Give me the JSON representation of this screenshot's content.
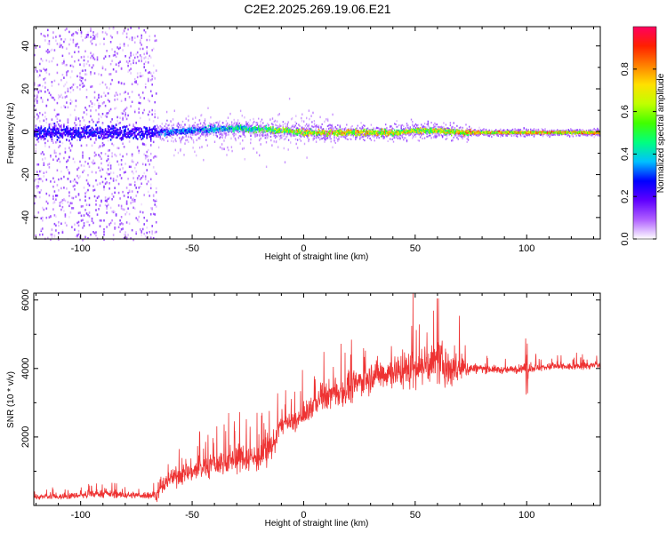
{
  "title": "C2E2.2025.269.19.06.E21",
  "chart_data": [
    {
      "type": "heatmap",
      "xlabel": "Height of straight line (km)",
      "ylabel": "Frequency (Hz)",
      "xlim": [
        -121,
        133
      ],
      "ylim": [
        -50,
        49
      ],
      "xticks": [
        -100,
        -50,
        0,
        50,
        100
      ],
      "xtick_labels": [
        "-100",
        "-50",
        "0",
        "50",
        "100"
      ],
      "yticks": [
        -40,
        -20,
        0,
        20,
        40
      ],
      "ytick_labels": [
        "-40",
        "-20",
        "0",
        "20",
        "40"
      ],
      "description_series": [
        {
          "name": "noise_region",
          "x_range": [
            -121,
            -66
          ],
          "freq_spread": [
            -50,
            49
          ],
          "amplitude": 0.1
        },
        {
          "name": "signal_band",
          "x": [
            -66,
            -50,
            -30,
            -10,
            0,
            20,
            40,
            55,
            72,
            133
          ],
          "center_freq": [
            0,
            1,
            2,
            1,
            0,
            0,
            0,
            1,
            0,
            0
          ],
          "amplitude": [
            0.35,
            0.4,
            0.5,
            0.7,
            0.8,
            0.85,
            0.8,
            0.75,
            0.85,
            0.9
          ]
        }
      ]
    },
    {
      "type": "colorbar",
      "label": "Normalized spectral amplitude",
      "range": [
        0,
        1
      ],
      "ticks": [
        0.0,
        0.2,
        0.4,
        0.6,
        0.8
      ],
      "tick_labels": [
        "0.0",
        "0.2",
        "0.4",
        "0.6",
        "0.8"
      ],
      "colors": [
        "#ffffff",
        "#b060ff",
        "#6000ff",
        "#0000ff",
        "#00c0ff",
        "#00ff80",
        "#40ff00",
        "#c0ff00",
        "#ffe000",
        "#ff8000",
        "#ff2000",
        "#ff0060"
      ]
    },
    {
      "type": "line",
      "xlabel": "Height of straight line (km)",
      "ylabel": "SNR (10 * v/v)",
      "xlim": [
        -121,
        133
      ],
      "ylim": [
        0,
        6200
      ],
      "xticks": [
        -100,
        -50,
        0,
        50,
        100
      ],
      "xtick_labels": [
        "-100",
        "-50",
        "0",
        "50",
        "100"
      ],
      "yticks": [
        2000,
        4000,
        6000
      ],
      "ytick_labels": [
        "2000",
        "4000",
        "6000"
      ],
      "series": [
        {
          "name": "SNR",
          "color": "#ee3333",
          "x": [
            -121,
            -110,
            -100,
            -90,
            -80,
            -70,
            -66,
            -60,
            -50,
            -40,
            -30,
            -20,
            -15,
            -10,
            -5,
            0,
            5,
            10,
            20,
            30,
            40,
            50,
            55,
            60,
            65,
            70,
            75,
            80,
            90,
            100,
            110,
            120,
            133
          ],
          "y": [
            250,
            250,
            300,
            350,
            300,
            300,
            300,
            800,
            1000,
            1200,
            1400,
            1400,
            1600,
            2400,
            2400,
            2600,
            3000,
            3200,
            3400,
            3800,
            3900,
            4000,
            4100,
            4200,
            4000,
            4000,
            4000,
            4000,
            3950,
            4000,
            4050,
            4050,
            4100
          ],
          "noise": [
            150,
            150,
            180,
            200,
            180,
            200,
            300,
            500,
            600,
            700,
            800,
            800,
            800,
            600,
            600,
            600,
            700,
            800,
            800,
            900,
            900,
            1100,
            1000,
            1200,
            1100,
            900,
            300,
            250,
            200,
            250,
            200,
            200,
            200
          ]
        }
      ]
    }
  ]
}
